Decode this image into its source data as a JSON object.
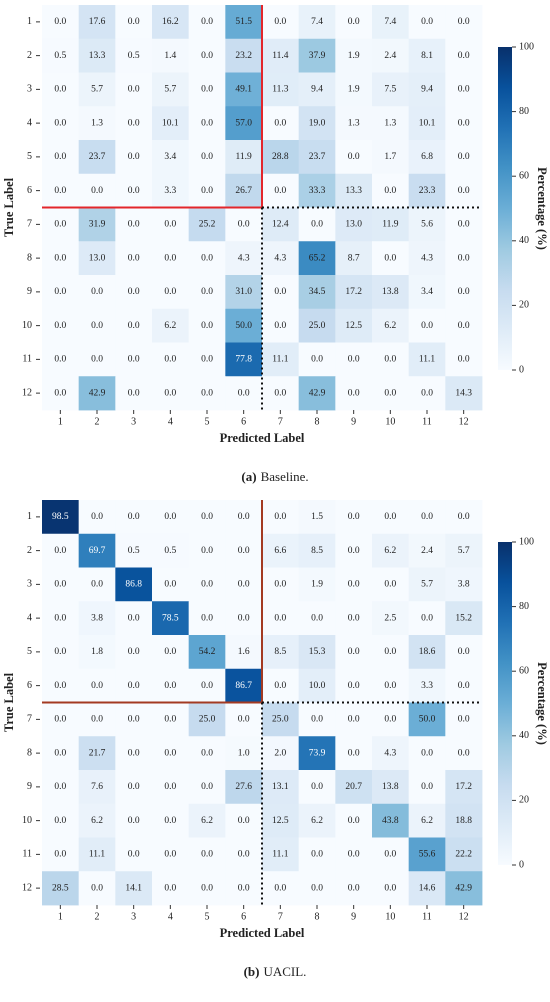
{
  "chart_data": [
    {
      "type": "heatmap",
      "xlabel": "Predicted Label",
      "ylabel": "True Label",
      "caption_label": "(a)",
      "caption": "Baseline.",
      "colorbar_label": "Percentage (%)",
      "x_labels": [
        "1",
        "2",
        "3",
        "4",
        "5",
        "6",
        "7",
        "8",
        "9",
        "10",
        "11",
        "12"
      ],
      "y_labels": [
        "1",
        "2",
        "3",
        "4",
        "5",
        "6",
        "7",
        "8",
        "9",
        "10",
        "11",
        "12"
      ],
      "colormap": "Blues",
      "clim": [
        0,
        100
      ],
      "cticks": [
        0,
        20,
        40,
        60,
        80,
        100
      ],
      "divider": {
        "after": 6,
        "color": "#e3262b",
        "dotted_color": "#111111"
      },
      "values": [
        [
          0,
          17.6,
          0,
          16.2,
          0,
          51.5,
          0,
          7.4,
          0,
          7.4,
          0,
          0
        ],
        [
          0.5,
          13.3,
          0.5,
          1.4,
          0,
          23.2,
          11.4,
          37.9,
          1.9,
          2.4,
          8.1,
          0
        ],
        [
          0,
          5.7,
          0,
          5.7,
          0,
          49.1,
          11.3,
          9.4,
          1.9,
          7.5,
          9.4,
          0
        ],
        [
          0,
          1.3,
          0,
          10.1,
          0,
          57,
          0,
          19,
          1.3,
          1.3,
          10.1,
          0
        ],
        [
          0,
          23.7,
          0,
          3.4,
          0,
          11.9,
          28.8,
          23.7,
          0,
          1.7,
          6.8,
          0
        ],
        [
          0,
          0,
          0,
          3.3,
          0,
          26.7,
          0,
          33.3,
          13.3,
          0,
          23.3,
          0
        ],
        [
          0,
          31.9,
          0,
          0,
          25.2,
          0,
          12.4,
          0,
          13,
          11.9,
          5.6,
          0
        ],
        [
          0,
          13,
          0,
          0,
          0,
          4.3,
          4.3,
          65.2,
          8.7,
          0,
          4.3,
          0
        ],
        [
          0,
          0,
          0,
          0,
          0,
          31,
          0,
          34.5,
          17.2,
          13.8,
          3.4,
          0
        ],
        [
          0,
          0,
          0,
          6.2,
          0,
          50,
          0,
          25,
          12.5,
          6.2,
          0,
          0
        ],
        [
          0,
          0,
          0,
          0,
          0,
          77.8,
          11.1,
          0,
          0,
          0,
          11.1,
          0
        ],
        [
          0,
          42.9,
          0,
          0,
          0,
          0,
          0,
          42.9,
          0,
          0,
          0,
          14.3
        ]
      ],
      "value_labels": [
        [
          "0.0",
          "17.6",
          "0.0",
          "16.2",
          "0.0",
          "51.5",
          "0.0",
          "7.4",
          "0.0",
          "7.4",
          "0.0",
          "0.0"
        ],
        [
          "0.5",
          "13.3",
          "0.5",
          "1.4",
          "0.0",
          "23.2",
          "11.4",
          "37.9",
          "1.9",
          "2.4",
          "8.1",
          "0.0"
        ],
        [
          "0.0",
          "5.7",
          "0.0",
          "5.7",
          "0.0",
          "49.1",
          "11.3",
          "9.4",
          "1.9",
          "7.5",
          "9.4",
          "0.0"
        ],
        [
          "0.0",
          "1.3",
          "0.0",
          "10.1",
          "0.0",
          "57.0",
          "0.0",
          "19.0",
          "1.3",
          "1.3",
          "10.1",
          "0.0"
        ],
        [
          "0.0",
          "23.7",
          "0.0",
          "3.4",
          "0.0",
          "11.9",
          "28.8",
          "23.7",
          "0.0",
          "1.7",
          "6.8",
          "0.0"
        ],
        [
          "0.0",
          "0.0",
          "0.0",
          "3.3",
          "0.0",
          "26.7",
          "0.0",
          "33.3",
          "13.3",
          "0.0",
          "23.3",
          "0.0"
        ],
        [
          "0.0",
          "31.9",
          "0.0",
          "0.0",
          "25.2",
          "0.0",
          "12.4",
          "0.0",
          "13.0",
          "11.9",
          "5.6",
          "0.0"
        ],
        [
          "0.0",
          "13.0",
          "0.0",
          "0.0",
          "0.0",
          "4.3",
          "4.3",
          "65.2",
          "8.7",
          "0.0",
          "4.3",
          "0.0"
        ],
        [
          "0.0",
          "0.0",
          "0.0",
          "0.0",
          "0.0",
          "31.0",
          "0.0",
          "34.5",
          "17.2",
          "13.8",
          "3.4",
          "0.0"
        ],
        [
          "0.0",
          "0.0",
          "0.0",
          "6.2",
          "0.0",
          "50.0",
          "0.0",
          "25.0",
          "12.5",
          "6.2",
          "0.0",
          "0.0"
        ],
        [
          "0.0",
          "0.0",
          "0.0",
          "0.0",
          "0.0",
          "77.8",
          "11.1",
          "0.0",
          "0.0",
          "0.0",
          "11.1",
          "0.0"
        ],
        [
          "0.0",
          "42.9",
          "0.0",
          "0.0",
          "0.0",
          "0.0",
          "0.0",
          "42.9",
          "0.0",
          "0.0",
          "0.0",
          "14.3"
        ]
      ]
    },
    {
      "type": "heatmap",
      "xlabel": "Predicted Label",
      "ylabel": "True Label",
      "caption_label": "(b)",
      "caption": "UACIL.",
      "colorbar_label": "Percentage (%)",
      "x_labels": [
        "1",
        "2",
        "3",
        "4",
        "5",
        "6",
        "7",
        "8",
        "9",
        "10",
        "11",
        "12"
      ],
      "y_labels": [
        "1",
        "2",
        "3",
        "4",
        "5",
        "6",
        "7",
        "8",
        "9",
        "10",
        "11",
        "12"
      ],
      "colormap": "Blues",
      "clim": [
        0,
        100
      ],
      "cticks": [
        0,
        20,
        40,
        60,
        80,
        100
      ],
      "divider": {
        "after": 6,
        "color": "#a33a22",
        "dotted_color": "#111111"
      },
      "values": [
        [
          98.5,
          0,
          0,
          0,
          0,
          0,
          0,
          1.5,
          0,
          0,
          0,
          0
        ],
        [
          0,
          69.7,
          0.5,
          0.5,
          0,
          0,
          6.6,
          8.5,
          0,
          6.2,
          2.4,
          5.7
        ],
        [
          0,
          0,
          86.8,
          0,
          0,
          0,
          0,
          1.9,
          0,
          0,
          5.7,
          3.8
        ],
        [
          0,
          3.8,
          0,
          78.5,
          0,
          0,
          0,
          0,
          0,
          2.5,
          0,
          15.2
        ],
        [
          0,
          1.8,
          0,
          0,
          54.2,
          1.6,
          8.5,
          15.3,
          0,
          0,
          18.6,
          0
        ],
        [
          0,
          0,
          0,
          0,
          0,
          86.7,
          0,
          10,
          0,
          0,
          3.3,
          0
        ],
        [
          0,
          0,
          0,
          0,
          25,
          0,
          25,
          0,
          0,
          0,
          50,
          0
        ],
        [
          0,
          21.7,
          0,
          0,
          0,
          1,
          2,
          73.9,
          0,
          4.3,
          0,
          0
        ],
        [
          0,
          7.6,
          0,
          0,
          0,
          27.6,
          13.1,
          0,
          20.7,
          13.8,
          0,
          17.2
        ],
        [
          0,
          6.2,
          0,
          0,
          6.2,
          0,
          12.5,
          6.2,
          0,
          43.8,
          6.2,
          18.8
        ],
        [
          0,
          11.1,
          0,
          0,
          0,
          0,
          11.1,
          0,
          0,
          0,
          55.6,
          22.2
        ],
        [
          28.5,
          0,
          14.1,
          0,
          0,
          0,
          0,
          0,
          0,
          0,
          14.6,
          42.9
        ]
      ],
      "value_labels": [
        [
          "98.5",
          "0.0",
          "0.0",
          "0.0",
          "0.0",
          "0.0",
          "0.0",
          "1.5",
          "0.0",
          "0.0",
          "0.0",
          "0.0"
        ],
        [
          "0.0",
          "69.7",
          "0.5",
          "0.5",
          "0.0",
          "0.0",
          "6.6",
          "8.5",
          "0.0",
          "6.2",
          "2.4",
          "5.7"
        ],
        [
          "0.0",
          "0.0",
          "86.8",
          "0.0",
          "0.0",
          "0.0",
          "0.0",
          "1.9",
          "0.0",
          "0.0",
          "5.7",
          "3.8"
        ],
        [
          "0.0",
          "3.8",
          "0.0",
          "78.5",
          "0.0",
          "0.0",
          "0.0",
          "0.0",
          "0.0",
          "2.5",
          "0.0",
          "15.2"
        ],
        [
          "0.0",
          "1.8",
          "0.0",
          "0.0",
          "54.2",
          "1.6",
          "8.5",
          "15.3",
          "0.0",
          "0.0",
          "18.6",
          "0.0"
        ],
        [
          "0.0",
          "0.0",
          "0.0",
          "0.0",
          "0.0",
          "86.7",
          "0.0",
          "10.0",
          "0.0",
          "0.0",
          "3.3",
          "0.0"
        ],
        [
          "0.0",
          "0.0",
          "0.0",
          "0.0",
          "25.0",
          "0.0",
          "25.0",
          "0.0",
          "0.0",
          "0.0",
          "50.0",
          "0.0"
        ],
        [
          "0.0",
          "21.7",
          "0.0",
          "0.0",
          "0.0",
          "1.0",
          "2.0",
          "73.9",
          "0.0",
          "4.3",
          "0.0",
          "0.0"
        ],
        [
          "0.0",
          "7.6",
          "0.0",
          "0.0",
          "0.0",
          "27.6",
          "13.1",
          "0.0",
          "20.7",
          "13.8",
          "0.0",
          "17.2"
        ],
        [
          "0.0",
          "6.2",
          "0.0",
          "0.0",
          "6.2",
          "0.0",
          "12.5",
          "6.2",
          "0.0",
          "43.8",
          "6.2",
          "18.8"
        ],
        [
          "0.0",
          "11.1",
          "0.0",
          "0.0",
          "0.0",
          "0.0",
          "11.1",
          "0.0",
          "0.0",
          "0.0",
          "55.6",
          "22.2"
        ],
        [
          "28.5",
          "0.0",
          "14.1",
          "0.0",
          "0.0",
          "0.0",
          "0.0",
          "0.0",
          "0.0",
          "0.0",
          "14.6",
          "42.9"
        ]
      ]
    }
  ]
}
